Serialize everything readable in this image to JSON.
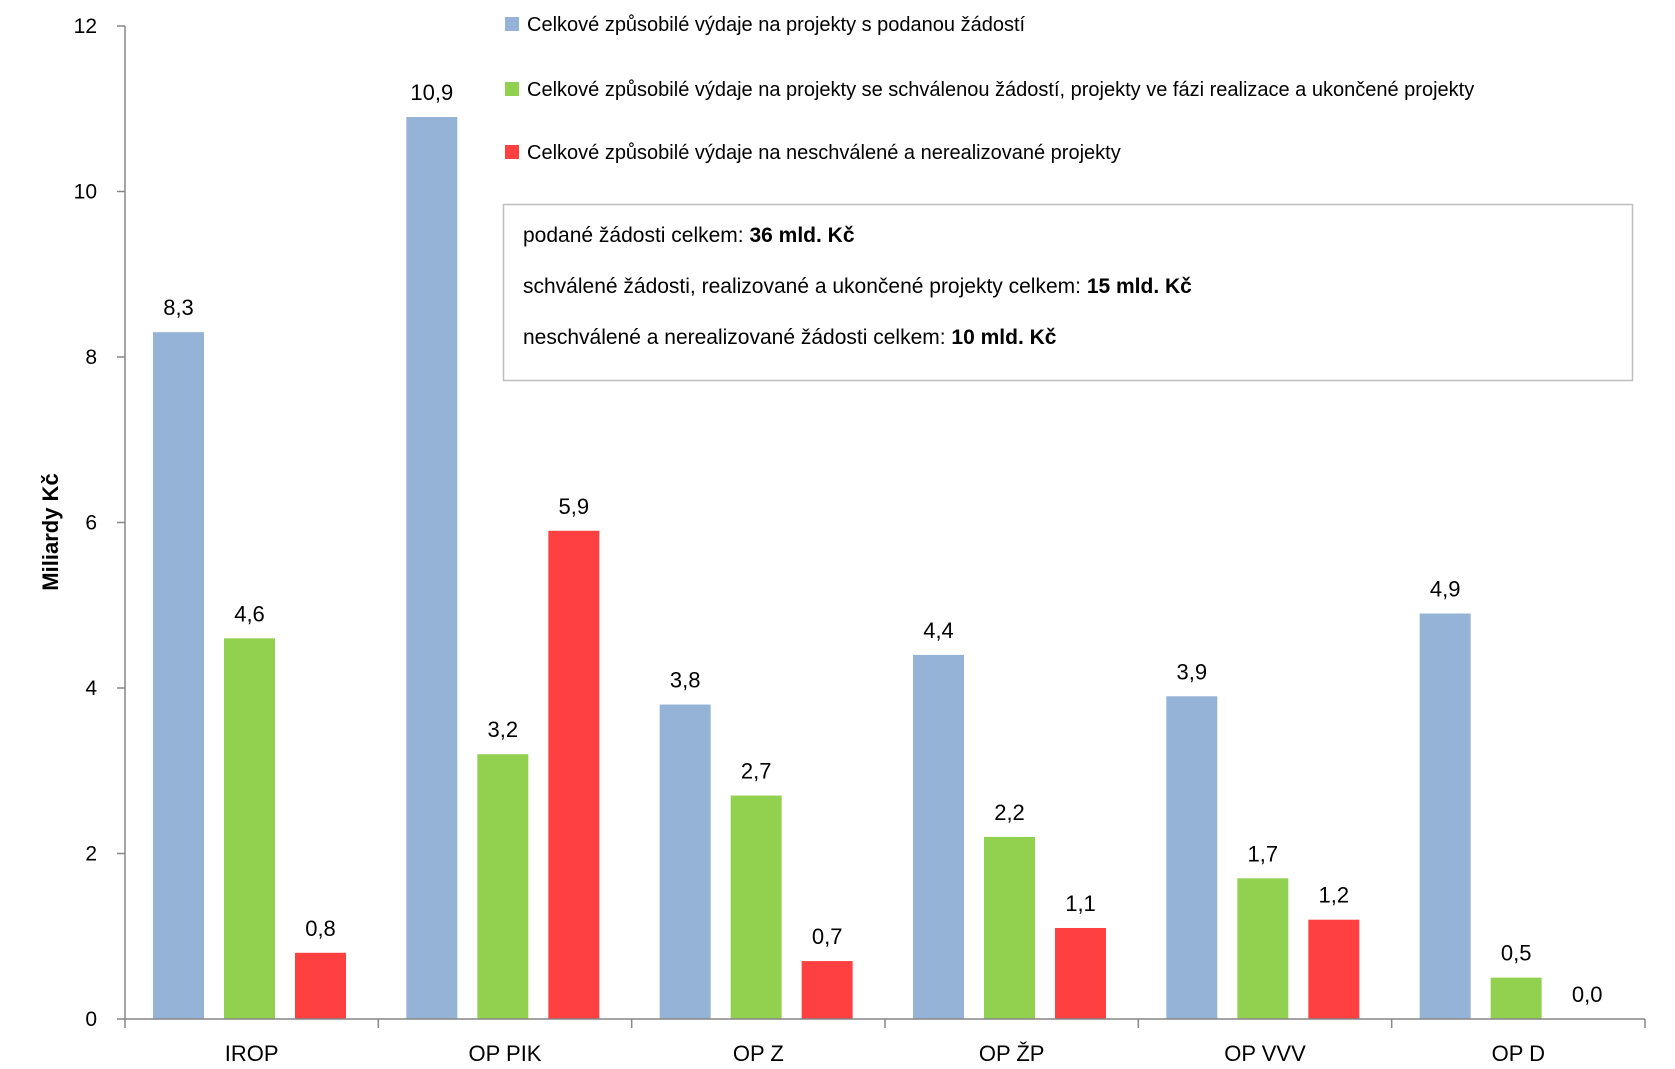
{
  "chart_data": {
    "type": "bar",
    "title": "",
    "xlabel": "",
    "ylabel": "Miliardy Kč",
    "ylim": [
      0,
      12
    ],
    "yticks": [
      0,
      2,
      4,
      6,
      8,
      10,
      12
    ],
    "grid": false,
    "legend_position": "top-right",
    "categories": [
      "IROP",
      "OP PIK",
      "OP Z",
      "OP ŽP",
      "OP VVV",
      "OP D"
    ],
    "series": [
      {
        "name": "Celkové způsobilé výdaje na projekty s podanou žádostí",
        "color": "#95B3D7",
        "values": [
          8.3,
          10.9,
          3.8,
          4.4,
          3.9,
          4.9
        ],
        "labels": [
          "8,3",
          "10,9",
          "3,8",
          "4,4",
          "3,9",
          "4,9"
        ]
      },
      {
        "name": "Celkové způsobilé výdaje na projekty se schválenou žádostí, projekty ve fázi realizace a ukončené projekty",
        "color": "#92D050",
        "values": [
          4.6,
          3.2,
          2.7,
          2.2,
          1.7,
          0.5
        ],
        "labels": [
          "4,6",
          "3,2",
          "2,7",
          "2,2",
          "1,7",
          "0,5"
        ]
      },
      {
        "name": "Celkové způsobilé výdaje na neschválené a nerealizované projekty",
        "color": "#FF4040",
        "values": [
          0.8,
          5.9,
          0.7,
          1.1,
          1.2,
          0.0
        ],
        "labels": [
          "0,8",
          "5,9",
          "0,7",
          "1,1",
          "1,2",
          "0,0"
        ]
      }
    ],
    "annotation_box": {
      "lines": [
        {
          "text": "podané žádosti celkem: ",
          "bold": "36 mld.  Kč"
        },
        {
          "text": "schválené žádosti, realizované a ukončené projekty celkem: ",
          "bold": "15 mld. Kč"
        },
        {
          "text": "neschválené a nerealizované žádosti celkem: ",
          "bold": "10 mld. Kč"
        }
      ]
    }
  }
}
